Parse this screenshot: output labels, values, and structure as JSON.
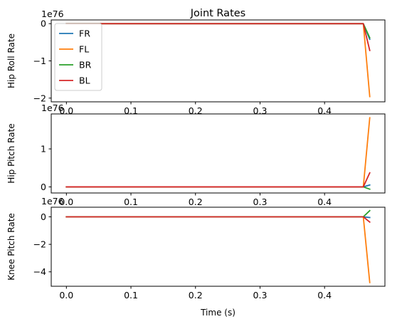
{
  "chart_data": {
    "type": "line",
    "title": "Joint Rates",
    "xlabel": "Time (s)",
    "xlim": [
      -0.0235,
      0.4935
    ],
    "x_ticks": [
      "0.0",
      "0.1",
      "0.2",
      "0.3",
      "0.4"
    ],
    "x_tick_values": [
      0.0,
      0.1,
      0.2,
      0.3,
      0.4
    ],
    "colors": {
      "FR": "#1f77b4",
      "FL": "#ff7f0e",
      "BR": "#2ca02c",
      "BL": "#d62728"
    },
    "legend": {
      "location": "upper left",
      "entries": [
        "FR",
        "FL",
        "BR",
        "BL"
      ]
    },
    "grid": false,
    "subplots": [
      {
        "id": "hip-roll",
        "ylabel": "Hip Roll Rate",
        "offset_text": "1e76",
        "ylim": [
          -2.1,
          0.1
        ],
        "y_ticks": [
          "0",
          "−1",
          "−2"
        ],
        "y_tick_values": [
          0,
          -1,
          -2
        ],
        "show_legend": true,
        "series": [
          {
            "name": "FR",
            "x": [
              0.0,
              0.46,
              0.47
            ],
            "y": [
              0,
              0,
              -0.42
            ]
          },
          {
            "name": "FL",
            "x": [
              0.0,
              0.46,
              0.47
            ],
            "y": [
              0,
              0,
              -1.96
            ]
          },
          {
            "name": "BR",
            "x": [
              0.0,
              0.46,
              0.47
            ],
            "y": [
              0,
              0,
              -0.38
            ]
          },
          {
            "name": "BL",
            "x": [
              0.0,
              0.46,
              0.47
            ],
            "y": [
              0,
              0,
              -0.72
            ]
          }
        ]
      },
      {
        "id": "hip-pitch",
        "ylabel": "Hip Pitch Rate",
        "offset_text": "1e76",
        "ylim": [
          -0.16,
          1.92
        ],
        "y_ticks": [
          "0",
          "1"
        ],
        "y_tick_values": [
          0,
          1
        ],
        "show_legend": false,
        "series": [
          {
            "name": "FR",
            "x": [
              0.0,
              0.46,
              0.47
            ],
            "y": [
              0,
              0,
              0.05
            ]
          },
          {
            "name": "FL",
            "x": [
              0.0,
              0.46,
              0.47
            ],
            "y": [
              0,
              0,
              1.82
            ]
          },
          {
            "name": "BR",
            "x": [
              0.0,
              0.46,
              0.47
            ],
            "y": [
              0,
              0,
              -0.06
            ]
          },
          {
            "name": "BL",
            "x": [
              0.0,
              0.46,
              0.47
            ],
            "y": [
              0,
              0,
              0.37
            ]
          }
        ]
      },
      {
        "id": "knee-pitch",
        "ylabel": "Knee Pitch Rate",
        "offset_text": "1e76",
        "ylim": [
          -5.05,
          0.7
        ],
        "y_ticks": [
          "0",
          "−2",
          "−4"
        ],
        "y_tick_values": [
          0,
          -2,
          -4
        ],
        "show_legend": false,
        "series": [
          {
            "name": "FR",
            "x": [
              0.0,
              0.46,
              0.47
            ],
            "y": [
              0,
              0,
              -0.05
            ]
          },
          {
            "name": "FL",
            "x": [
              0.0,
              0.46,
              0.47
            ],
            "y": [
              0,
              0,
              -4.78
            ]
          },
          {
            "name": "BR",
            "x": [
              0.0,
              0.46,
              0.47
            ],
            "y": [
              0,
              0,
              0.45
            ]
          },
          {
            "name": "BL",
            "x": [
              0.0,
              0.46,
              0.47
            ],
            "y": [
              0,
              0,
              -0.38
            ]
          }
        ]
      }
    ]
  }
}
